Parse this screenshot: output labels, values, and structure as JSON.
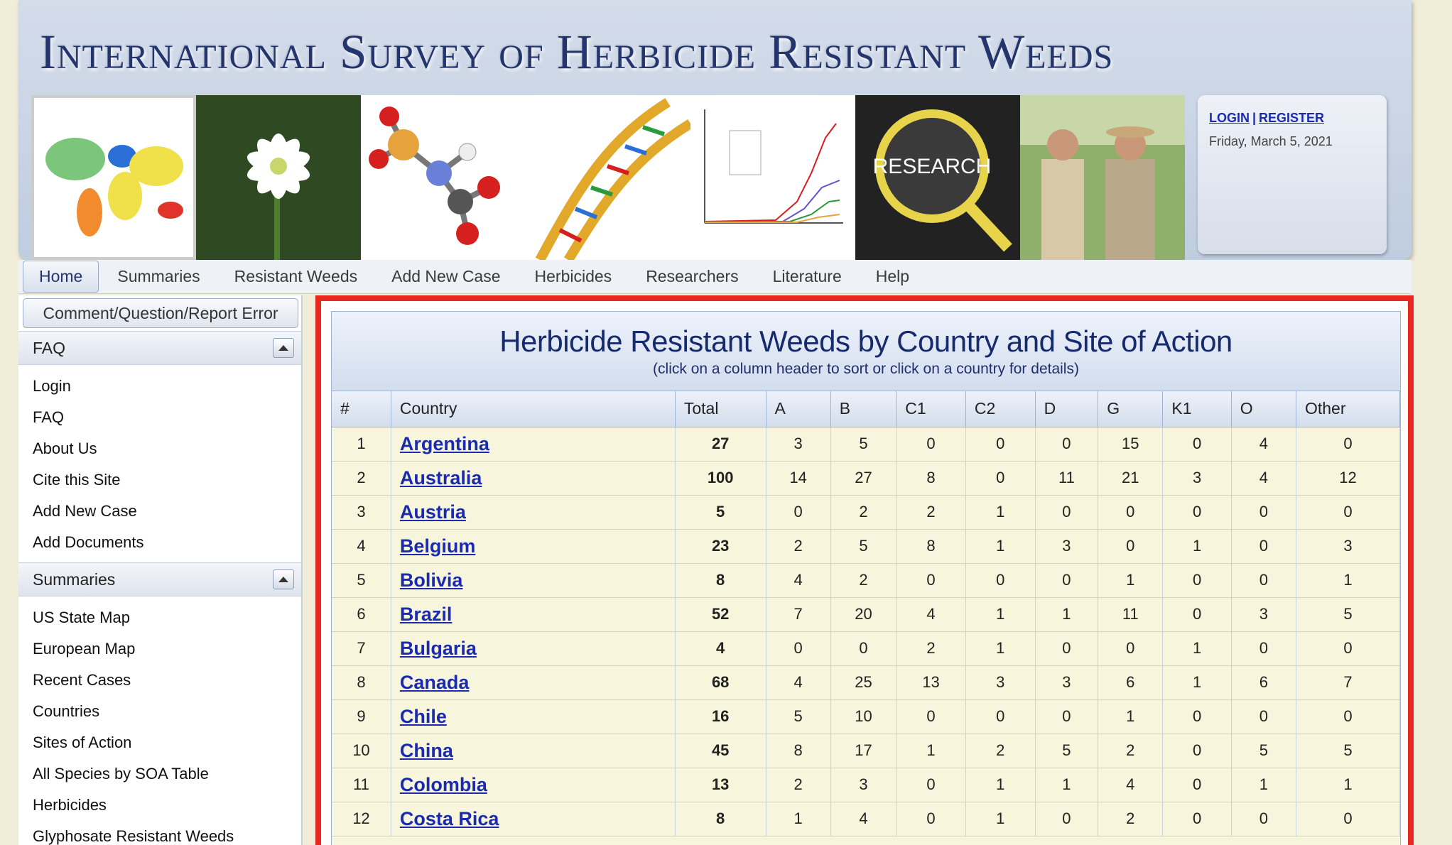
{
  "header": {
    "title": "International Survey of Herbicide Resistant Weeds",
    "banner_panels": [
      "world-map",
      "white-flower",
      "molecule",
      "dna-helix",
      "line-graph",
      "research-magnifier",
      "field-researchers"
    ],
    "banner_research_word": "RESEARCH"
  },
  "user_box": {
    "login": "LOGIN",
    "separator": "|",
    "register": "REGISTER",
    "date": "Friday, March 5, 2021"
  },
  "nav": {
    "items": [
      "Home",
      "Summaries",
      "Resistant Weeds",
      "Add New Case",
      "Herbicides",
      "Researchers",
      "Literature",
      "Help"
    ],
    "active": "Home"
  },
  "sidebar": {
    "comment_button": "Comment/Question/Report Error",
    "sections": [
      {
        "title": "FAQ",
        "items": [
          "Login",
          "FAQ",
          "About Us",
          "Cite this Site",
          "Add New Case",
          "Add Documents"
        ]
      },
      {
        "title": "Summaries",
        "items": [
          "US State Map",
          "European Map",
          "Recent Cases",
          "Countries",
          "Sites of Action",
          "All Species by SOA Table",
          "Herbicides",
          "Glyphosate Resistant Weeds"
        ]
      }
    ]
  },
  "table": {
    "title": "Herbicide Resistant Weeds by Country and Site of Action",
    "subtitle": "(click on a column header to sort or click on a country for details)",
    "columns": [
      "#",
      "Country",
      "Total",
      "A",
      "B",
      "C1",
      "C2",
      "D",
      "G",
      "K1",
      "O",
      "Other"
    ],
    "rows": [
      [
        "1",
        "Argentina",
        "27",
        "3",
        "5",
        "0",
        "0",
        "0",
        "15",
        "0",
        "4",
        "0"
      ],
      [
        "2",
        "Australia",
        "100",
        "14",
        "27",
        "8",
        "0",
        "11",
        "21",
        "3",
        "4",
        "12"
      ],
      [
        "3",
        "Austria",
        "5",
        "0",
        "2",
        "2",
        "1",
        "0",
        "0",
        "0",
        "0",
        "0"
      ],
      [
        "4",
        "Belgium",
        "23",
        "2",
        "5",
        "8",
        "1",
        "3",
        "0",
        "1",
        "0",
        "3"
      ],
      [
        "5",
        "Bolivia",
        "8",
        "4",
        "2",
        "0",
        "0",
        "0",
        "1",
        "0",
        "0",
        "1"
      ],
      [
        "6",
        "Brazil",
        "52",
        "7",
        "20",
        "4",
        "1",
        "1",
        "11",
        "0",
        "3",
        "5"
      ],
      [
        "7",
        "Bulgaria",
        "4",
        "0",
        "0",
        "2",
        "1",
        "0",
        "0",
        "1",
        "0",
        "0"
      ],
      [
        "8",
        "Canada",
        "68",
        "4",
        "25",
        "13",
        "3",
        "3",
        "6",
        "1",
        "6",
        "7"
      ],
      [
        "9",
        "Chile",
        "16",
        "5",
        "10",
        "0",
        "0",
        "0",
        "1",
        "0",
        "0",
        "0"
      ],
      [
        "10",
        "China",
        "45",
        "8",
        "17",
        "1",
        "2",
        "5",
        "2",
        "0",
        "5",
        "5"
      ],
      [
        "11",
        "Colombia",
        "13",
        "2",
        "3",
        "0",
        "1",
        "1",
        "4",
        "0",
        "1",
        "1"
      ],
      [
        "12",
        "Costa Rica",
        "8",
        "1",
        "4",
        "0",
        "1",
        "0",
        "2",
        "0",
        "0",
        "0"
      ]
    ]
  },
  "colors": {
    "highlight_frame": "#e8281f",
    "link": "#1b2bb0",
    "title": "#162a6e",
    "row_bg": "#f7f6dc"
  }
}
